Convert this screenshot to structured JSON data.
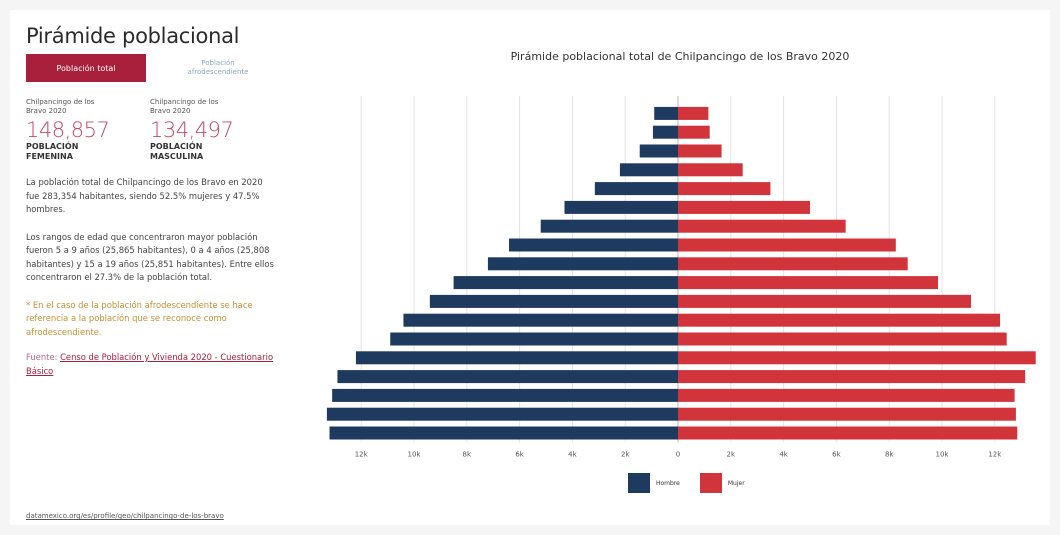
{
  "header": {
    "title": "Pirámide poblacional"
  },
  "tabs": {
    "active": "Población total",
    "inactive": "Población afrodescendiente"
  },
  "stats": [
    {
      "place": "Chilpancingo de los Bravo 2020",
      "value": "148,857",
      "label": "POBLACIÓN FEMENINA"
    },
    {
      "place": "Chilpancingo de los Bravo 2020",
      "value": "134,497",
      "label": "POBLACIÓN MASCULINA"
    }
  ],
  "text": {
    "para1": "La población total de Chilpancingo de los Bravo en 2020 fue 283,354 habitantes, siendo 52.5% mujeres y 47.5% hombres.",
    "para2": "Los rangos de edad que concentraron mayor población fueron 5 a 9 años (25,865 habitantes), 0 a 4 años (25,808 habitantes) y 15 a 19 años (25,851 habitantes). Entre ellos concentraron el 27.3% de la población total.",
    "note": "* En el caso de la población afrodescendiente se hace referencia a la población que se reconoce como afrodescendiente.",
    "source_prefix": "Fuente:",
    "source_link": "Censo de Población y Vivienda 2020 - Cuestionario Básico",
    "url": "datamexico.org/es/profile/geo/chilpancingo-de-los-bravo"
  },
  "colors": {
    "male": "#1f3a5f",
    "female": "#d1343a",
    "accent": "#a8203b"
  },
  "chart_data": {
    "type": "bar",
    "title": "Pirámide poblacional total de Chilpancingo de los Bravo 2020",
    "orientation": "horizontal-population-pyramid",
    "xlim": [
      -13000,
      13000
    ],
    "tick_values": [
      -12000,
      -10000,
      -8000,
      -6000,
      -4000,
      -2000,
      0,
      2000,
      4000,
      6000,
      8000,
      10000,
      12000
    ],
    "tick_labels": [
      "12k",
      "10k",
      "8k",
      "6k",
      "4k",
      "2k",
      "0",
      "2k",
      "4k",
      "6k",
      "8k",
      "10k",
      "12k"
    ],
    "series": [
      {
        "name": "Hombre",
        "values": [
          900,
          950,
          1450,
          2200,
          3150,
          4300,
          5200,
          6400,
          7200,
          8500,
          9400,
          10400,
          10900,
          12200,
          12900,
          13100,
          13300,
          13200
        ]
      },
      {
        "name": "Mujer",
        "values": [
          1150,
          1200,
          1650,
          2450,
          3500,
          5000,
          6350,
          8250,
          8700,
          9850,
          11100,
          12200,
          12450,
          13550,
          13150,
          12750,
          12800,
          12850
        ]
      }
    ],
    "grid": true,
    "legend_position": "bottom"
  }
}
